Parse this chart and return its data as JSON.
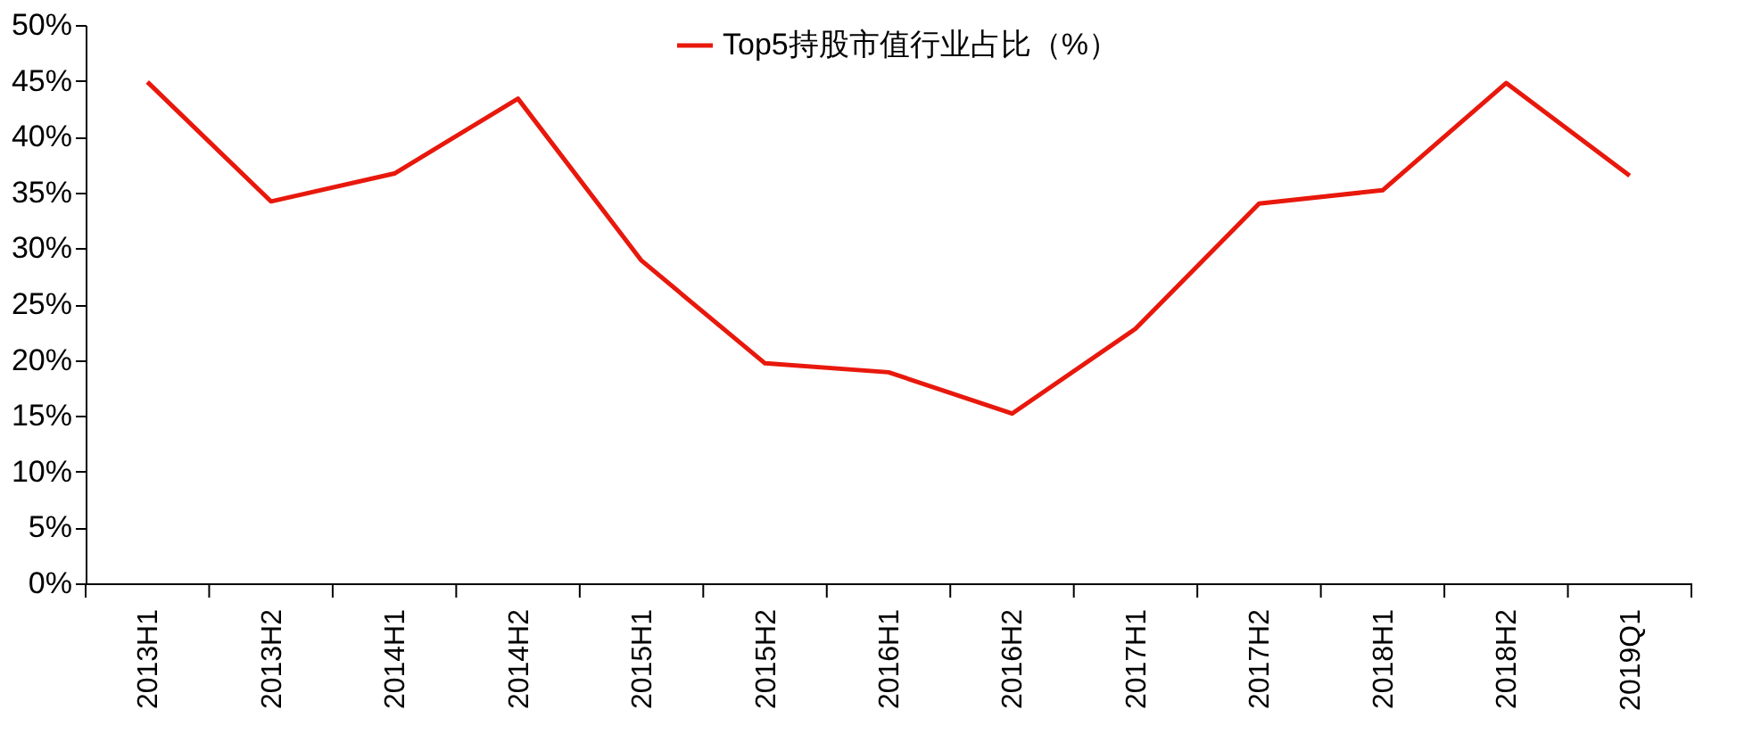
{
  "chart_data": {
    "type": "line",
    "categories": [
      "2013H1",
      "2013H2",
      "2014H1",
      "2014H2",
      "2015H1",
      "2015H2",
      "2016H1",
      "2016H2",
      "2017H1",
      "2017H2",
      "2018H1",
      "2018H2",
      "2019Q1"
    ],
    "series": [
      {
        "name": "Top5持股市值行业占比（%）",
        "color": "#e8180c",
        "values": [
          44.9,
          34.2,
          36.7,
          43.4,
          28.9,
          19.7,
          18.9,
          15.2,
          22.8,
          34.0,
          35.2,
          44.8,
          36.5
        ]
      }
    ],
    "ylim": [
      0,
      50
    ],
    "yticks": [
      {
        "value": 0,
        "label": "0%"
      },
      {
        "value": 5,
        "label": "5%"
      },
      {
        "value": 10,
        "label": "10%"
      },
      {
        "value": 15,
        "label": "15%"
      },
      {
        "value": 20,
        "label": "20%"
      },
      {
        "value": 25,
        "label": "25%"
      },
      {
        "value": 30,
        "label": "30%"
      },
      {
        "value": 35,
        "label": "35%"
      },
      {
        "value": 40,
        "label": "40%"
      },
      {
        "value": 45,
        "label": "45%"
      },
      {
        "value": 50,
        "label": "50%"
      }
    ],
    "grid": false,
    "legend": "top",
    "marker": "none",
    "line_style": "solid"
  }
}
